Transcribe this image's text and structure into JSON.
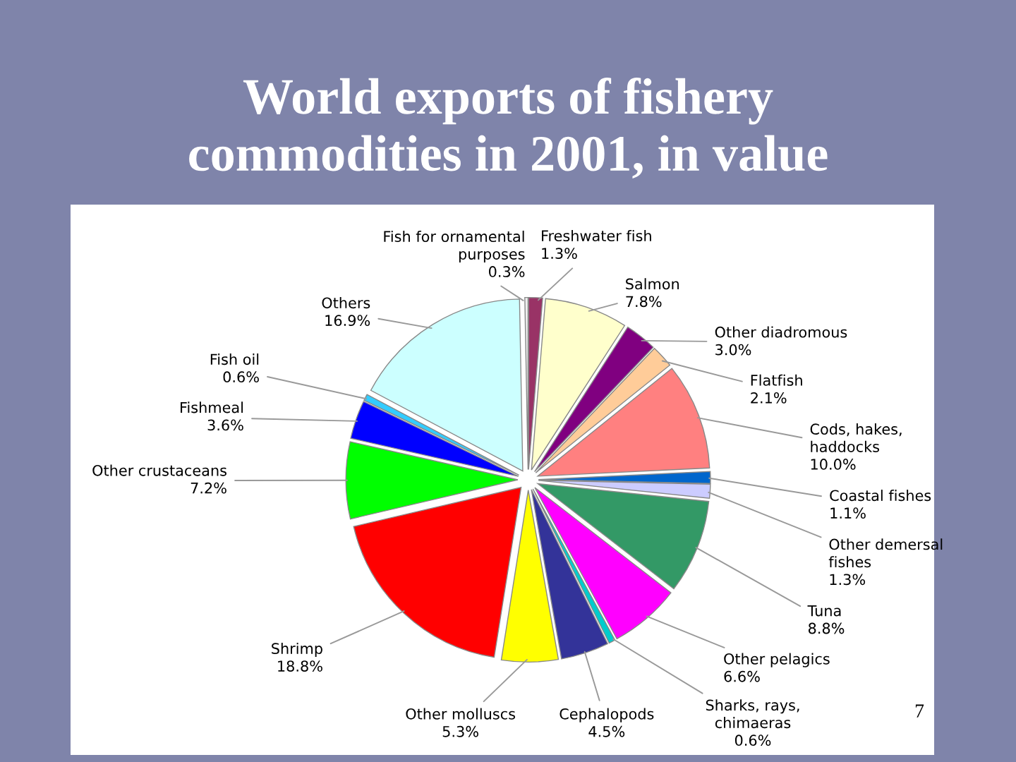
{
  "chart_data": {
    "type": "pie",
    "title": "World exports of fishery\ncommodities in 2001, in value",
    "categories": [
      "Freshwater fish",
      "Salmon",
      "Other diadromous",
      "Flatfish",
      "Cods, hakes,\nhaddocks",
      "Coastal fishes",
      "Other demersal\nfishes",
      "Tuna",
      "Other pelagics",
      "Sharks, rays,\nchimaeras",
      "Cephalopods",
      "Other molluscs",
      "Shrimp",
      "Other crustaceans",
      "Fishmeal",
      "Fish oil",
      "Others",
      "Fish for ornamental\npurposes"
    ],
    "values": [
      1.3,
      7.8,
      3.0,
      2.1,
      10.0,
      1.1,
      1.3,
      8.8,
      6.6,
      0.6,
      4.5,
      5.3,
      18.8,
      7.2,
      3.6,
      0.6,
      16.9,
      0.3
    ],
    "value_labels": [
      "1.3%",
      "7.8%",
      "3.0%",
      "2.1%",
      "10.0%",
      "1.1%",
      "1.3%",
      "8.8%",
      "6.6%",
      "0.6%",
      "4.5%",
      "5.3%",
      "18.8%",
      "7.2%",
      "3.6%",
      "0.6%",
      "16.9%",
      "0.3%"
    ],
    "colors": [
      "#993366",
      "#ffffcc",
      "#800080",
      "#ffcc99",
      "#ff8080",
      "#0066cc",
      "#ccccff",
      "#339966",
      "#ff00ff",
      "#00cccc",
      "#333399",
      "#ffff00",
      "#ff0000",
      "#00ff00",
      "#0000ff",
      "#33ccff",
      "#ccffff",
      "#f0f0f0"
    ],
    "annotations": [
      "7"
    ]
  }
}
